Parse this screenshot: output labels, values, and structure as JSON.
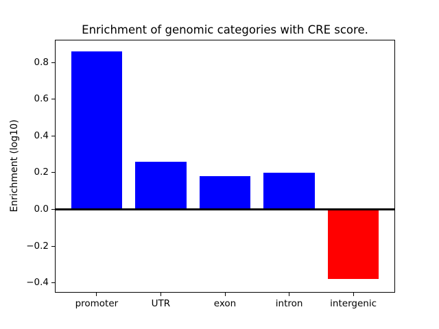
{
  "figure": {
    "background": "#ffffff",
    "axis_color": "#000000"
  },
  "chart_data": {
    "type": "bar",
    "title": "Enrichment of genomic categories with CRE score.",
    "xlabel": "",
    "ylabel": "Enrichment (log10)",
    "categories": [
      "promoter",
      "UTR",
      "exon",
      "intron",
      "intergenic"
    ],
    "values": [
      0.86,
      0.26,
      0.18,
      0.2,
      -0.38
    ],
    "bar_colors": [
      "#0000ff",
      "#0000ff",
      "#0000ff",
      "#0000ff",
      "#ff0000"
    ],
    "bar_width": 0.8,
    "ylim": [
      -0.45,
      0.92
    ],
    "yticks": [
      -0.4,
      -0.2,
      0.0,
      0.2,
      0.4,
      0.6,
      0.8
    ],
    "ytick_labels": [
      "−0.4",
      "−0.2",
      "0.0",
      "0.2",
      "0.4",
      "0.6",
      "0.8"
    ],
    "zero_line": true,
    "grid": false,
    "legend_position": "none"
  }
}
